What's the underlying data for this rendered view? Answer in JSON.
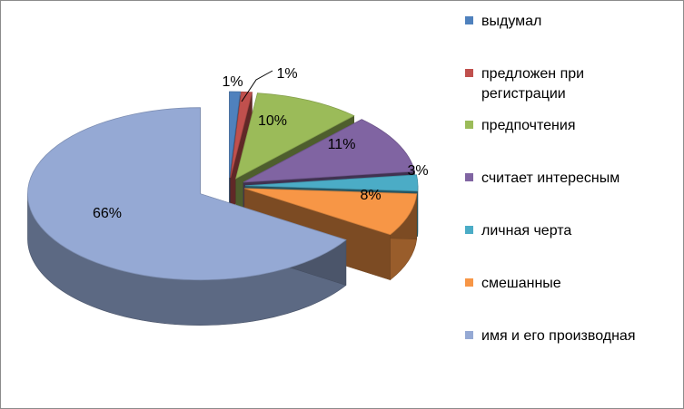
{
  "chart_data": {
    "type": "pie",
    "style": "3d-exploded",
    "categories": [
      "выдумал",
      "предложен при регистрации",
      "предпочтения",
      "считает интересным",
      "личная черта",
      "смешанные",
      "имя и его производная"
    ],
    "legend_lines": [
      [
        "выдумал"
      ],
      [
        "предложен при",
        "регистрации"
      ],
      [
        "предпочтения"
      ],
      [
        "считает интересным"
      ],
      [
        "личная черта"
      ],
      [
        "смешанные"
      ],
      [
        "имя и его производная"
      ]
    ],
    "values": [
      1,
      1,
      10,
      11,
      3,
      8,
      66
    ],
    "labels": [
      "1%",
      "1%",
      "10%",
      "11%",
      "3%",
      "8%",
      "66%"
    ],
    "colors": [
      "#4f81bd",
      "#c0504d",
      "#9bbb59",
      "#8064a2",
      "#4bacc6",
      "#f79646",
      "#95a9d4"
    ],
    "legend_position": "right"
  }
}
